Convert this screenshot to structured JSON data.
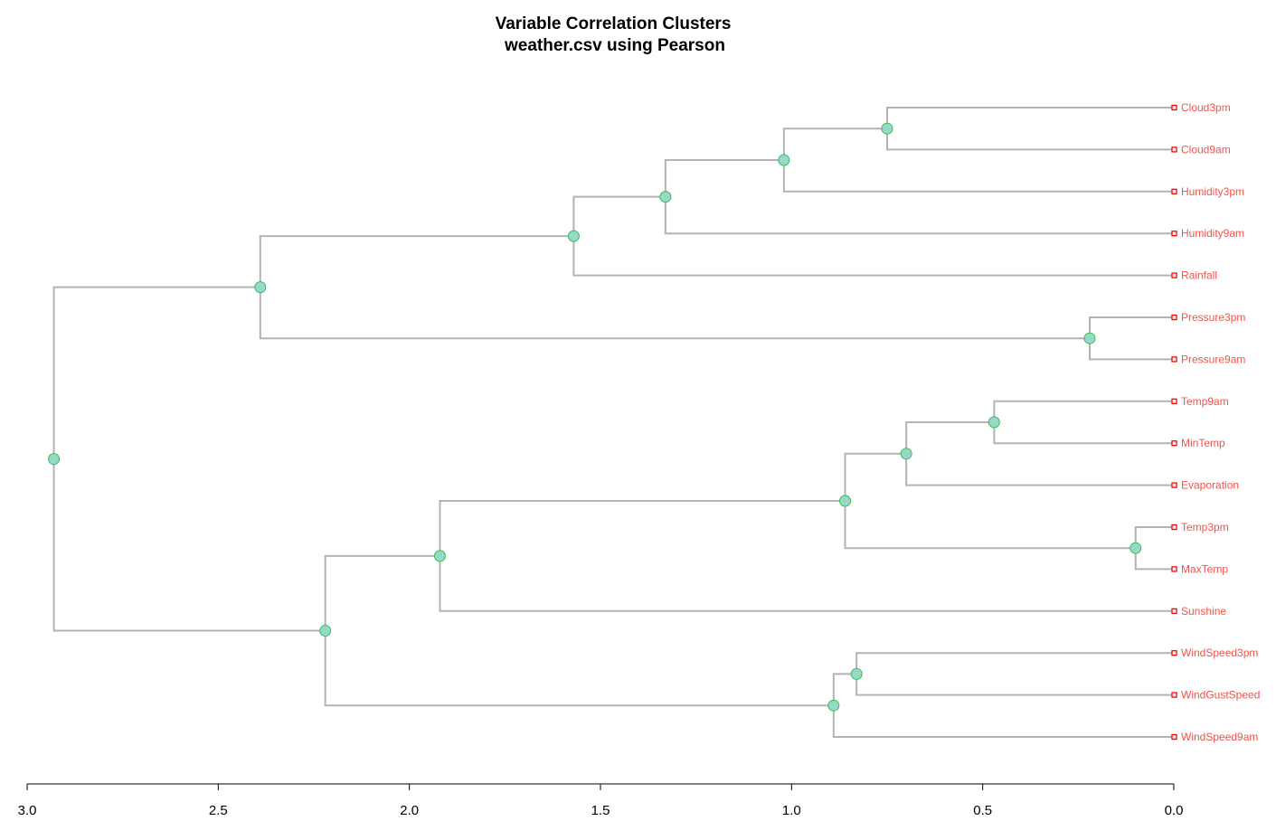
{
  "chart_data": {
    "type": "dendrogram",
    "title": "Variable Correlation Clusters",
    "subtitle": "weather.csv using Pearson",
    "orientation": "horizontal",
    "xlim": [
      3.0,
      0.0
    ],
    "ticks": [
      "3.0",
      "2.5",
      "2.0",
      "1.5",
      "1.0",
      "0.5",
      "0.0"
    ],
    "tick_values": [
      3.0,
      2.5,
      2.0,
      1.5,
      1.0,
      0.5,
      0.0
    ],
    "leaves": [
      "Cloud3pm",
      "Cloud9am",
      "Humidity3pm",
      "Humidity9am",
      "Rainfall",
      "Pressure3pm",
      "Pressure9am",
      "Temp9am",
      "MinTemp",
      "Evaporation",
      "Temp3pm",
      "MaxTemp",
      "Sunshine",
      "WindSpeed3pm",
      "WindGustSpeed",
      "WindSpeed9am"
    ],
    "merges": [
      {
        "id": "m1",
        "left": "L0",
        "right": "L1",
        "height": 0.75
      },
      {
        "id": "m2",
        "left": "m1",
        "right": "L2",
        "height": 1.02
      },
      {
        "id": "m3",
        "left": "m2",
        "right": "L3",
        "height": 1.33
      },
      {
        "id": "m4",
        "left": "m3",
        "right": "L4",
        "height": 1.57
      },
      {
        "id": "m5",
        "left": "L5",
        "right": "L6",
        "height": 0.22
      },
      {
        "id": "m6",
        "left": "m4",
        "right": "m5",
        "height": 2.39
      },
      {
        "id": "m7",
        "left": "L7",
        "right": "L8",
        "height": 0.47
      },
      {
        "id": "m8",
        "left": "m7",
        "right": "L9",
        "height": 0.7
      },
      {
        "id": "m9",
        "left": "L10",
        "right": "L11",
        "height": 0.1
      },
      {
        "id": "m10",
        "left": "m8",
        "right": "m9",
        "height": 0.86
      },
      {
        "id": "m11",
        "left": "m10",
        "right": "L12",
        "height": 1.92
      },
      {
        "id": "m12",
        "left": "L13",
        "right": "L14",
        "height": 0.83
      },
      {
        "id": "m13",
        "left": "m12",
        "right": "L15",
        "height": 0.89
      },
      {
        "id": "m14",
        "left": "m11",
        "right": "m13",
        "height": 2.22
      },
      {
        "id": "m15",
        "left": "m6",
        "right": "m14",
        "height": 2.93
      }
    ],
    "colors": {
      "branch": "#b3b3b3",
      "node_fill": "#99d8c9",
      "node_stroke": "#2ec44a",
      "leaf_label": "#f2524a",
      "leaf_marker": "#ff0000"
    }
  }
}
